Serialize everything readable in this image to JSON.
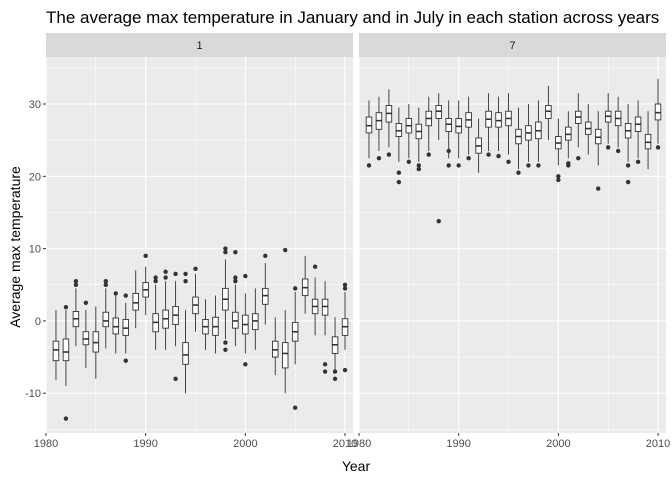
{
  "chart_data": {
    "type": "boxplot",
    "title": "The average max temperature in January and in July in each station across years",
    "xlabel": "Year",
    "ylabel": "Average max temperature",
    "facets": [
      "1",
      "7"
    ],
    "xlim": [
      1980,
      2010.8
    ],
    "ylim": [
      -15.5,
      36.5
    ],
    "x_ticks": [
      1980,
      1990,
      2000,
      2010
    ],
    "y_ticks": [
      -10,
      0,
      10,
      20,
      30
    ],
    "grid": true,
    "panels": [
      {
        "facet": "1",
        "boxes": [
          {
            "year": 1981,
            "q1": -5.5,
            "median": -4.0,
            "q3": -2.8,
            "low": -8.2,
            "high": 1.5,
            "outliers": []
          },
          {
            "year": 1982,
            "q1": -5.5,
            "median": -4.3,
            "q3": -2.5,
            "low": -9.0,
            "high": 1.5,
            "outliers": [
              -13.5,
              1.9
            ]
          },
          {
            "year": 1983,
            "q1": -0.8,
            "median": 0.3,
            "q3": 1.3,
            "low": -3.5,
            "high": 4.5,
            "outliers": [
              5.0,
              5.5
            ]
          },
          {
            "year": 1984,
            "q1": -3.3,
            "median": -2.5,
            "q3": -1.5,
            "low": -6.5,
            "high": 1.5,
            "outliers": [
              2.5
            ]
          },
          {
            "year": 1985,
            "q1": -4.3,
            "median": -3.0,
            "q3": -1.5,
            "low": -8.0,
            "high": 2.0,
            "outliers": []
          },
          {
            "year": 1986,
            "q1": -0.8,
            "median": 0.0,
            "q3": 1.2,
            "low": -3.8,
            "high": 4.5,
            "outliers": [
              5.0,
              5.5
            ]
          },
          {
            "year": 1987,
            "q1": -1.8,
            "median": -0.8,
            "q3": 0.4,
            "low": -4.5,
            "high": 3.5,
            "outliers": [
              3.8
            ]
          },
          {
            "year": 1988,
            "q1": -2.0,
            "median": -1.0,
            "q3": 0.2,
            "low": -4.5,
            "high": 2.5,
            "outliers": [
              -5.5,
              3.5
            ]
          },
          {
            "year": 1989,
            "q1": 1.5,
            "median": 2.5,
            "q3": 3.8,
            "low": -1.0,
            "high": 7.0,
            "outliers": []
          },
          {
            "year": 1990,
            "q1": 3.3,
            "median": 4.3,
            "q3": 5.3,
            "low": 0.8,
            "high": 7.5,
            "outliers": [
              9.0
            ]
          },
          {
            "year": 1991,
            "q1": -1.5,
            "median": -0.2,
            "q3": 1.0,
            "low": -4.0,
            "high": 5.0,
            "outliers": [
              5.5,
              6.0
            ]
          },
          {
            "year": 1992,
            "q1": -1.0,
            "median": 0.3,
            "q3": 1.5,
            "low": -4.0,
            "high": 5.5,
            "outliers": [
              6.0,
              6.8
            ]
          },
          {
            "year": 1993,
            "q1": -0.5,
            "median": 0.8,
            "q3": 2.0,
            "low": -3.5,
            "high": 5.5,
            "outliers": [
              -8.0,
              6.5
            ]
          },
          {
            "year": 1994,
            "q1": -6.0,
            "median": -4.7,
            "q3": -3.0,
            "low": -10.0,
            "high": 1.5,
            "outliers": [
              5.5,
              6.5
            ]
          },
          {
            "year": 1995,
            "q1": 1.0,
            "median": 2.2,
            "q3": 3.3,
            "low": -1.5,
            "high": 6.5,
            "outliers": [
              7.2
            ]
          },
          {
            "year": 1996,
            "q1": -1.8,
            "median": -0.8,
            "q3": 0.2,
            "low": -4.0,
            "high": 3.0,
            "outliers": []
          },
          {
            "year": 1997,
            "q1": -2.0,
            "median": -0.8,
            "q3": 0.5,
            "low": -4.5,
            "high": 3.5,
            "outliers": []
          },
          {
            "year": 1998,
            "q1": 1.5,
            "median": 3.0,
            "q3": 4.5,
            "low": -2.5,
            "high": 8.5,
            "outliers": [
              -4.0,
              -3.0,
              9.5,
              10.0
            ]
          },
          {
            "year": 1999,
            "q1": -1.0,
            "median": 0.0,
            "q3": 1.2,
            "low": -3.5,
            "high": 5.0,
            "outliers": [
              5.5,
              6.0,
              9.5
            ]
          },
          {
            "year": 2000,
            "q1": -1.8,
            "median": -0.5,
            "q3": 0.8,
            "low": -4.5,
            "high": 3.8,
            "outliers": [
              -6.0,
              6.2
            ]
          },
          {
            "year": 2001,
            "q1": -1.2,
            "median": 0.0,
            "q3": 1.0,
            "low": -4.0,
            "high": 4.5,
            "outliers": []
          },
          {
            "year": 2002,
            "q1": 2.3,
            "median": 3.5,
            "q3": 4.5,
            "low": -0.5,
            "high": 8.0,
            "outliers": [
              9.0
            ]
          },
          {
            "year": 2003,
            "q1": -5.0,
            "median": -4.0,
            "q3": -2.8,
            "low": -7.5,
            "high": 0.5,
            "outliers": []
          },
          {
            "year": 2004,
            "q1": -6.5,
            "median": -4.5,
            "q3": -3.0,
            "low": -10.0,
            "high": 1.5,
            "outliers": [
              9.8
            ]
          },
          {
            "year": 2005,
            "q1": -2.8,
            "median": -1.5,
            "q3": -0.2,
            "low": -6.0,
            "high": 4.0,
            "outliers": [
              -12.0,
              4.5
            ]
          },
          {
            "year": 2006,
            "q1": 3.5,
            "median": 4.6,
            "q3": 5.8,
            "low": 1.0,
            "high": 9.0,
            "outliers": []
          },
          {
            "year": 2007,
            "q1": 1.0,
            "median": 2.0,
            "q3": 3.0,
            "low": -2.0,
            "high": 6.0,
            "outliers": [
              7.5
            ]
          },
          {
            "year": 2008,
            "q1": 0.8,
            "median": 2.0,
            "q3": 3.0,
            "low": -2.0,
            "high": 5.5,
            "outliers": [
              -7.0,
              -6.0
            ]
          },
          {
            "year": 2009,
            "q1": -4.5,
            "median": -3.3,
            "q3": -2.2,
            "low": -7.0,
            "high": 0.5,
            "outliers": [
              -8.0,
              -7.0
            ]
          },
          {
            "year": 2010,
            "q1": -2.0,
            "median": -0.8,
            "q3": 0.3,
            "low": -4.0,
            "high": 4.0,
            "outliers": [
              -6.8,
              4.5,
              5.0
            ]
          }
        ]
      },
      {
        "facet": "7",
        "boxes": [
          {
            "year": 1981,
            "q1": 26.0,
            "median": 27.0,
            "q3": 28.2,
            "low": 22.5,
            "high": 30.5,
            "outliers": [
              21.5
            ]
          },
          {
            "year": 1982,
            "q1": 26.5,
            "median": 27.7,
            "q3": 28.8,
            "low": 23.5,
            "high": 31.0,
            "outliers": [
              22.5
            ]
          },
          {
            "year": 1983,
            "q1": 27.5,
            "median": 28.7,
            "q3": 29.8,
            "low": 24.0,
            "high": 32.0,
            "outliers": [
              23.0
            ]
          },
          {
            "year": 1984,
            "q1": 25.5,
            "median": 26.3,
            "q3": 27.3,
            "low": 22.0,
            "high": 29.5,
            "outliers": [
              19.2,
              20.5
            ]
          },
          {
            "year": 1985,
            "q1": 26.0,
            "median": 27.0,
            "q3": 28.0,
            "low": 22.5,
            "high": 30.0,
            "outliers": [
              22.0
            ]
          },
          {
            "year": 1986,
            "q1": 25.2,
            "median": 26.2,
            "q3": 27.2,
            "low": 22.0,
            "high": 29.5,
            "outliers": [
              21.0,
              21.5
            ]
          },
          {
            "year": 1987,
            "q1": 27.0,
            "median": 28.0,
            "q3": 29.0,
            "low": 23.5,
            "high": 31.0,
            "outliers": [
              23.0
            ]
          },
          {
            "year": 1988,
            "q1": 28.0,
            "median": 29.0,
            "q3": 29.8,
            "low": 25.0,
            "high": 31.5,
            "outliers": [
              13.8
            ]
          },
          {
            "year": 1989,
            "q1": 26.2,
            "median": 27.2,
            "q3": 28.0,
            "low": 22.5,
            "high": 30.5,
            "outliers": [
              21.5,
              23.5
            ]
          },
          {
            "year": 1990,
            "q1": 26.0,
            "median": 26.9,
            "q3": 28.0,
            "low": 22.5,
            "high": 30.5,
            "outliers": [
              21.5
            ]
          },
          {
            "year": 1991,
            "q1": 26.8,
            "median": 27.8,
            "q3": 28.8,
            "low": 23.0,
            "high": 31.0,
            "outliers": [
              22.5
            ]
          },
          {
            "year": 1992,
            "q1": 23.2,
            "median": 24.2,
            "q3": 25.3,
            "low": 20.5,
            "high": 28.0,
            "outliers": []
          },
          {
            "year": 1993,
            "q1": 26.8,
            "median": 27.9,
            "q3": 29.0,
            "low": 23.5,
            "high": 31.5,
            "outliers": [
              23.0
            ]
          },
          {
            "year": 1994,
            "q1": 26.8,
            "median": 27.7,
            "q3": 28.8,
            "low": 23.5,
            "high": 31.0,
            "outliers": [
              22.8
            ]
          },
          {
            "year": 1995,
            "q1": 27.0,
            "median": 28.0,
            "q3": 29.0,
            "low": 23.0,
            "high": 31.5,
            "outliers": [
              22.0
            ]
          },
          {
            "year": 1996,
            "q1": 24.5,
            "median": 25.5,
            "q3": 26.5,
            "low": 21.0,
            "high": 29.5,
            "outliers": [
              20.5
            ]
          },
          {
            "year": 1997,
            "q1": 25.0,
            "median": 26.0,
            "q3": 27.0,
            "low": 22.0,
            "high": 30.0,
            "outliers": [
              21.5
            ]
          },
          {
            "year": 1998,
            "q1": 25.2,
            "median": 26.3,
            "q3": 27.5,
            "low": 22.0,
            "high": 30.5,
            "outliers": [
              21.5
            ]
          },
          {
            "year": 1999,
            "q1": 28.0,
            "median": 29.0,
            "q3": 29.8,
            "low": 25.0,
            "high": 32.5,
            "outliers": []
          },
          {
            "year": 2000,
            "q1": 23.8,
            "median": 24.6,
            "q3": 25.5,
            "low": 21.5,
            "high": 28.0,
            "outliers": [
              20.0,
              19.5
            ]
          },
          {
            "year": 2001,
            "q1": 25.0,
            "median": 25.8,
            "q3": 26.8,
            "low": 22.5,
            "high": 29.0,
            "outliers": [
              21.5,
              21.8
            ]
          },
          {
            "year": 2002,
            "q1": 27.3,
            "median": 28.2,
            "q3": 29.0,
            "low": 24.0,
            "high": 31.5,
            "outliers": [
              22.5
            ]
          },
          {
            "year": 2003,
            "q1": 25.8,
            "median": 26.6,
            "q3": 27.5,
            "low": 23.0,
            "high": 30.0,
            "outliers": []
          },
          {
            "year": 2004,
            "q1": 24.5,
            "median": 25.4,
            "q3": 26.5,
            "low": 21.5,
            "high": 29.0,
            "outliers": [
              18.3
            ]
          },
          {
            "year": 2005,
            "q1": 27.5,
            "median": 28.3,
            "q3": 29.0,
            "low": 24.5,
            "high": 31.5,
            "outliers": [
              24.0
            ]
          },
          {
            "year": 2006,
            "q1": 27.0,
            "median": 28.0,
            "q3": 29.0,
            "low": 24.0,
            "high": 31.0,
            "outliers": [
              23.5
            ]
          },
          {
            "year": 2007,
            "q1": 25.3,
            "median": 26.3,
            "q3": 27.3,
            "low": 22.0,
            "high": 30.0,
            "outliers": [
              19.2,
              21.5
            ]
          },
          {
            "year": 2008,
            "q1": 26.2,
            "median": 27.2,
            "q3": 28.2,
            "low": 22.5,
            "high": 30.5,
            "outliers": [
              22.0
            ]
          },
          {
            "year": 2009,
            "q1": 23.8,
            "median": 24.7,
            "q3": 25.8,
            "low": 21.0,
            "high": 29.0,
            "outliers": []
          },
          {
            "year": 2010,
            "q1": 27.8,
            "median": 28.8,
            "q3": 30.0,
            "low": 24.5,
            "high": 33.5,
            "outliers": [
              24.0
            ]
          }
        ]
      }
    ]
  },
  "colors": {
    "panel_background": "#ebebeb",
    "strip_background": "#d9d9d9",
    "grid_major": "#ffffff",
    "box_fill": "#ffffff",
    "box_line": "#333333",
    "outlier": "#333333"
  }
}
